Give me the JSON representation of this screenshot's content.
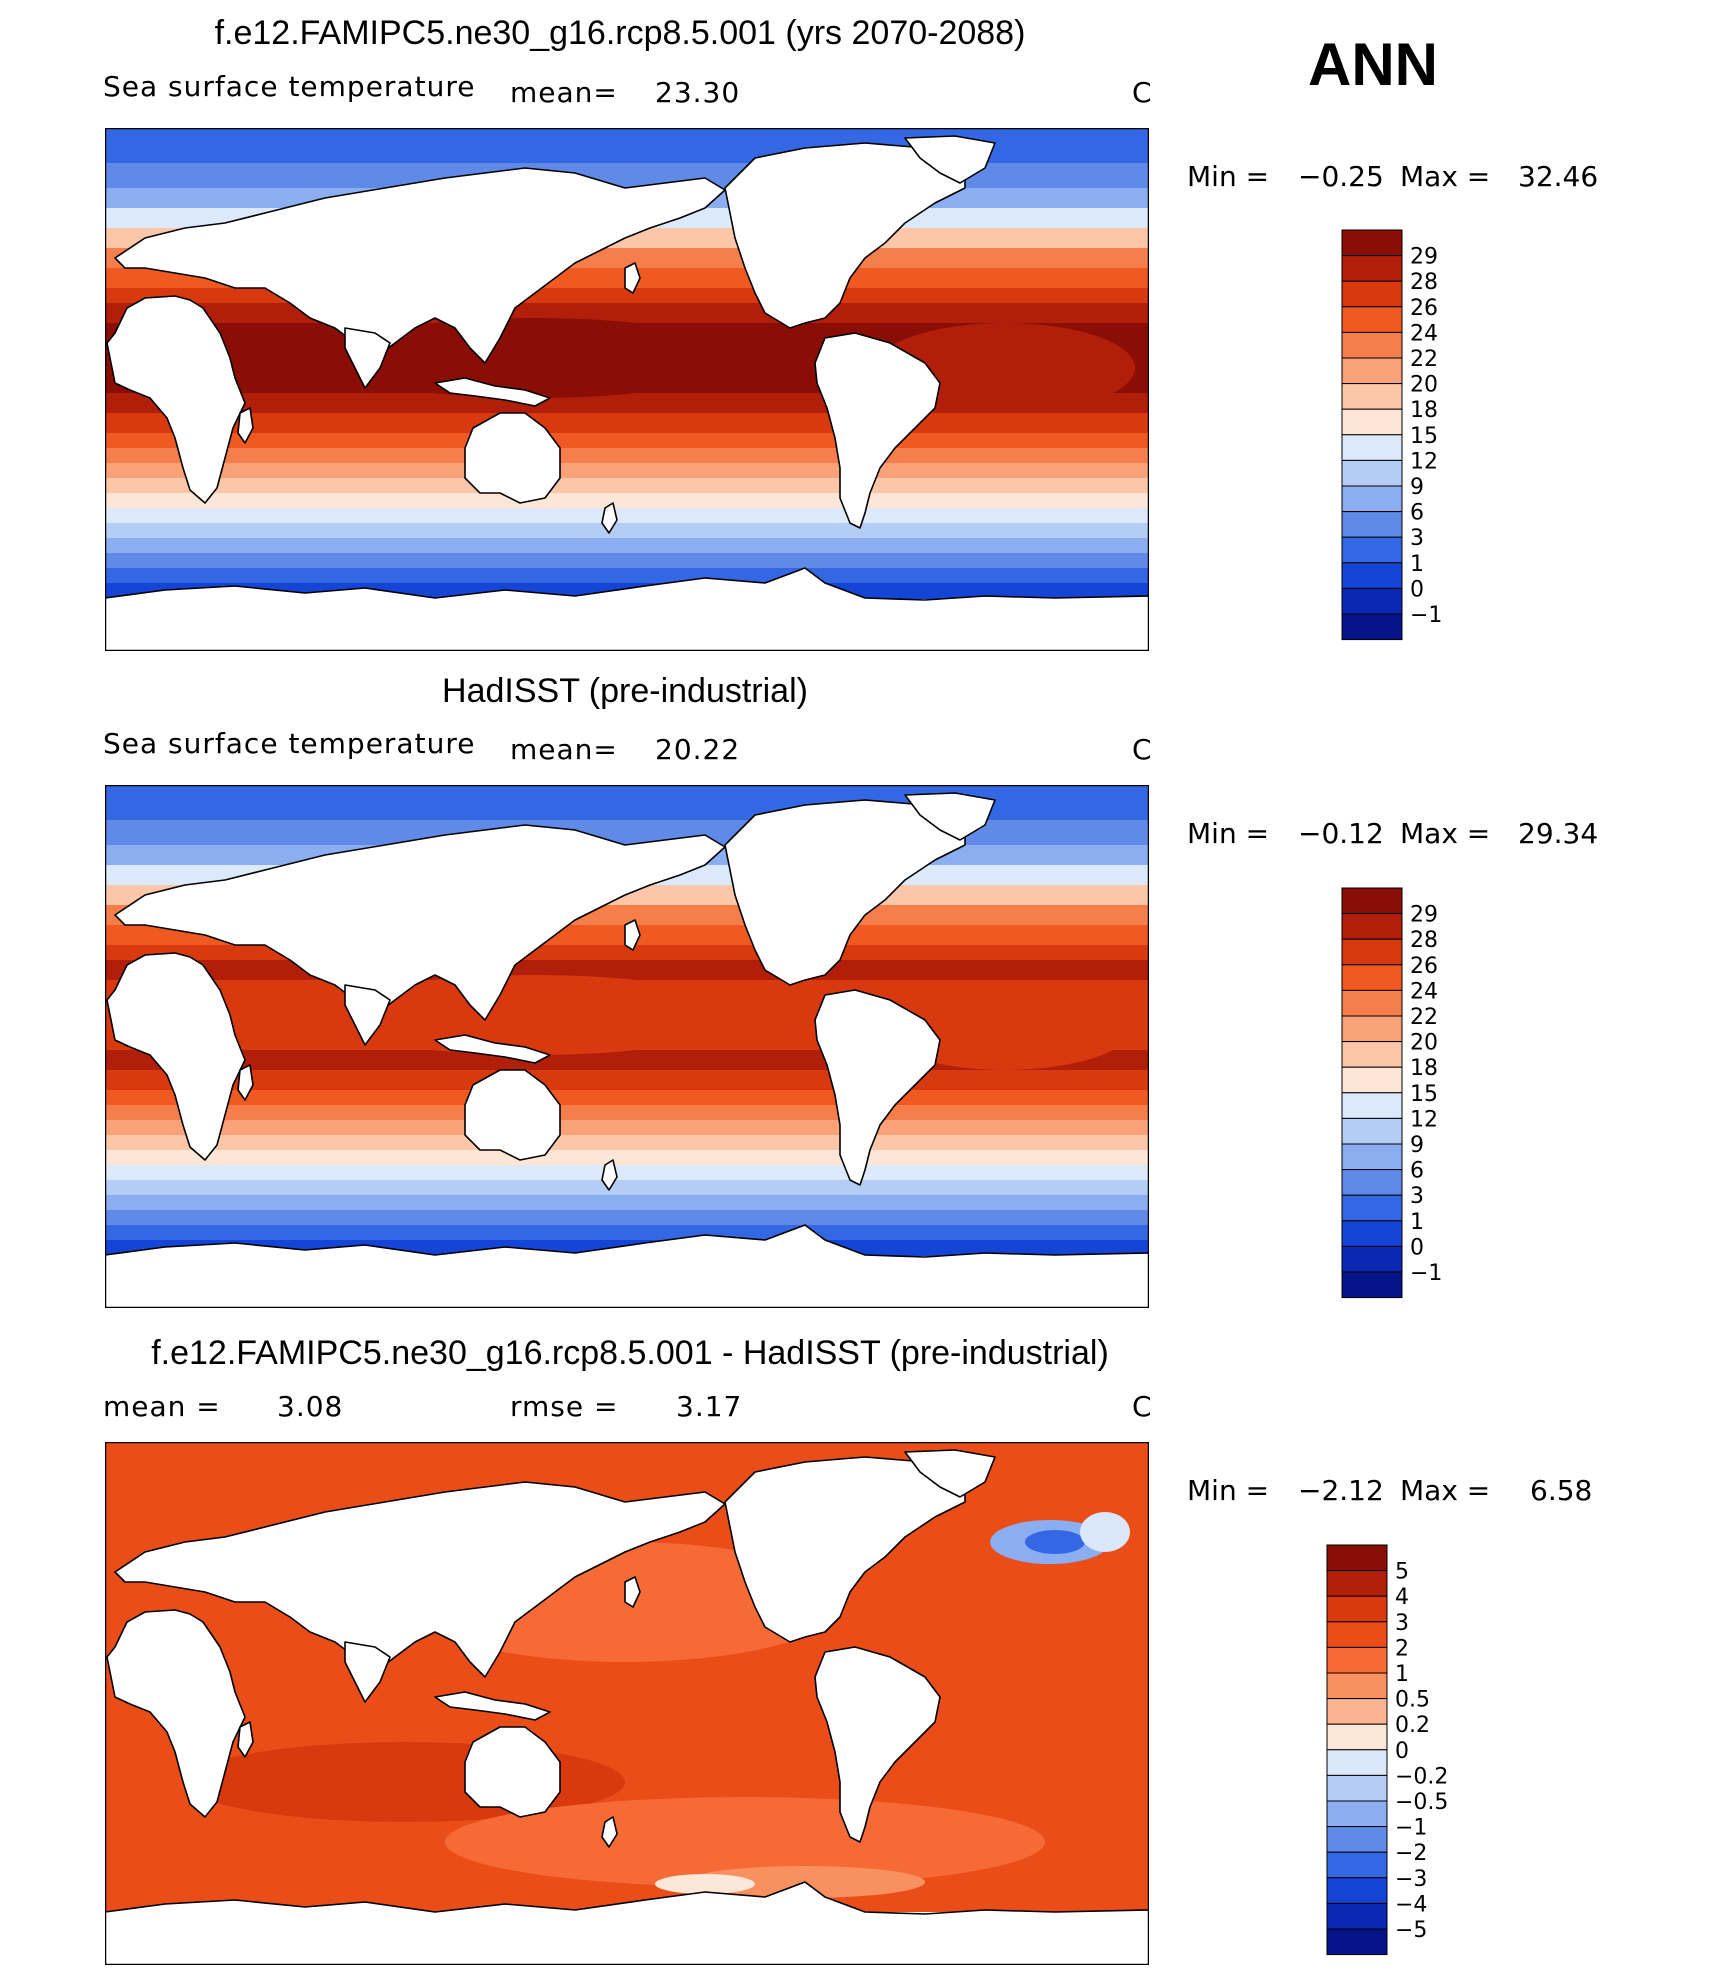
{
  "season": "ANN",
  "panels": [
    {
      "title": "f.e12.FAMIPC5.ne30_g16.rcp8.5.001 (yrs 2070-2088)",
      "variable": "Sea surface temperature",
      "stat1_label": "mean=",
      "stat1_value": "23.30",
      "units": "C",
      "min_label": "Min =",
      "min_value": "−0.25",
      "max_label": "Max =",
      "max_value": "32.46",
      "palette": "sst",
      "colorbar_labels": [
        "29",
        "28",
        "26",
        "24",
        "22",
        "20",
        "18",
        "15",
        "12",
        "9",
        "6",
        "3",
        "1",
        "0",
        "−1"
      ],
      "colorbar_colors": [
        "#8a0e05",
        "#b11f0b",
        "#d8390f",
        "#f05a22",
        "#f57e4b",
        "#f9a279",
        "#fcc7a8",
        "#fde6d6",
        "#dbe9fb",
        "#b4cdf6",
        "#8aaef0",
        "#5f8ae8",
        "#3467e3",
        "#1545d6",
        "#0a28b4",
        "#06148a"
      ]
    },
    {
      "title": "HadISST (pre-industrial)",
      "variable": "Sea surface temperature",
      "stat1_label": "mean=",
      "stat1_value": "20.22",
      "units": "C",
      "min_label": "Min =",
      "min_value": "−0.12",
      "max_label": "Max =",
      "max_value": "29.34",
      "palette": "sst",
      "colorbar_labels": [
        "29",
        "28",
        "26",
        "24",
        "22",
        "20",
        "18",
        "15",
        "12",
        "9",
        "6",
        "3",
        "1",
        "0",
        "−1"
      ],
      "colorbar_colors": [
        "#8a0e05",
        "#b11f0b",
        "#d8390f",
        "#f05a22",
        "#f57e4b",
        "#f9a279",
        "#fcc7a8",
        "#fde6d6",
        "#dbe9fb",
        "#b4cdf6",
        "#8aaef0",
        "#5f8ae8",
        "#3467e3",
        "#1545d6",
        "#0a28b4",
        "#06148a"
      ]
    },
    {
      "title": "f.e12.FAMIPC5.ne30_g16.rcp8.5.001 - HadISST (pre-industrial)",
      "stat1_label": "mean =",
      "stat1_value": "3.08",
      "stat2_label": "rmse =",
      "stat2_value": "3.17",
      "units": "C",
      "min_label": "Min =",
      "min_value": "−2.12",
      "max_label": "Max =",
      "max_value": "6.58",
      "palette": "diff",
      "colorbar_labels": [
        "5",
        "4",
        "3",
        "2",
        "1",
        "0.5",
        "0.2",
        "0",
        "−0.2",
        "−0.5",
        "−1",
        "−2",
        "−3",
        "−4",
        "−5"
      ],
      "colorbar_colors": [
        "#8a0e05",
        "#b11f0b",
        "#d8390f",
        "#ea4d18",
        "#f56a35",
        "#f9905f",
        "#fbb48f",
        "#fde7d8",
        "#dbe8fb",
        "#b5cdf6",
        "#8aaef0",
        "#5f8ae8",
        "#3467e3",
        "#1545d6",
        "#0a28b4",
        "#06148a"
      ]
    }
  ]
}
